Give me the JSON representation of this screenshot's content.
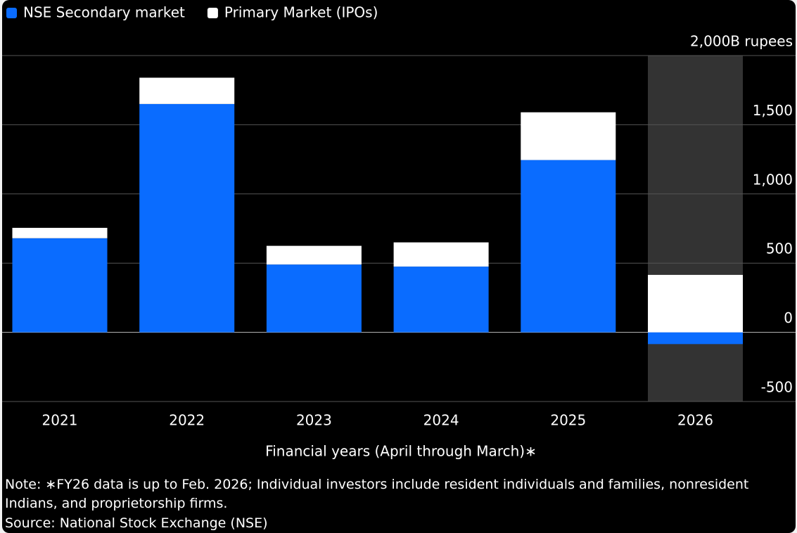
{
  "chart_data": {
    "type": "stacked_bar",
    "categories": [
      "2021",
      "2022",
      "2023",
      "2024",
      "2025",
      "2026"
    ],
    "series": [
      {
        "name": "NSE Secondary market",
        "color": "#0a6cff",
        "values": [
          680,
          1650,
          490,
          475,
          1245,
          -85
        ]
      },
      {
        "name": "Primary Market (IPOs)",
        "color": "#ffffff",
        "values": [
          75,
          190,
          135,
          175,
          345,
          415
        ]
      }
    ],
    "ylim": [
      -500,
      2000
    ],
    "yticks": [
      -500,
      0,
      500,
      {
        "value": 1000,
        "label": "1,000"
      },
      {
        "value": 1500,
        "label": "1,500"
      },
      {
        "value": 2000,
        "label": "2,000B rupees"
      }
    ],
    "grid": true,
    "highlight": "2026",
    "xlabel": "Financial years (April through March)∗",
    "note": "Note: ∗FY26 data is up to Feb. 2026; Individual investors include resident individuals and families, nonresident Indians, and proprietorship firms.",
    "source": "Source: National Stock Exchange (NSE)"
  }
}
